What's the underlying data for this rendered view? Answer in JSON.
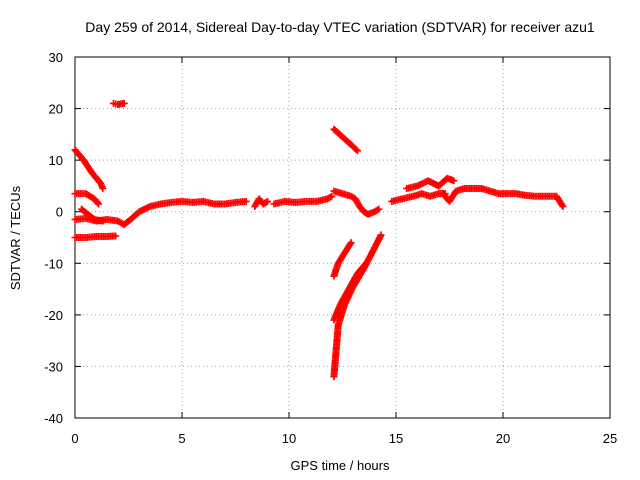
{
  "chart_data": {
    "type": "scatter",
    "title": "Day 259 of 2014, Sidereal Day-to-day VTEC variation (SDTVAR) for receiver azu1",
    "xlabel": "GPS time / hours",
    "ylabel": "SDTVAR / TECUs",
    "xlim": [
      0,
      25
    ],
    "ylim": [
      -40,
      30
    ],
    "xticks": [
      0,
      5,
      10,
      15,
      20,
      25
    ],
    "yticks": [
      -40,
      -30,
      -20,
      -10,
      0,
      10,
      20,
      30
    ],
    "xtick_labels": [
      "0",
      "5",
      "10",
      "15",
      "20",
      "25"
    ],
    "ytick_labels": [
      "-40",
      "-30",
      "-20",
      "-10",
      "0",
      "10",
      "20",
      "30"
    ],
    "grid": true,
    "marker": "+",
    "color": "#ff0000",
    "series": [
      {
        "name": "arc-main",
        "segments": [
          [
            [
              0.0,
              -1.5
            ],
            [
              0.5,
              -1.3
            ],
            [
              1.0,
              -1.8
            ],
            [
              1.5,
              -1.5
            ],
            [
              2.0,
              -1.8
            ],
            [
              2.3,
              -2.5
            ],
            [
              2.6,
              -1.5
            ],
            [
              3.0,
              0.0
            ],
            [
              3.5,
              1.0
            ],
            [
              4.0,
              1.5
            ],
            [
              4.5,
              1.8
            ],
            [
              5.0,
              2.0
            ],
            [
              5.5,
              1.8
            ],
            [
              6.0,
              2.0
            ],
            [
              6.5,
              1.5
            ],
            [
              7.0,
              1.5
            ],
            [
              7.5,
              1.8
            ],
            [
              8.0,
              2.0
            ]
          ],
          [
            [
              8.4,
              1.0
            ],
            [
              8.6,
              2.5
            ],
            [
              8.8,
              1.5
            ],
            [
              9.0,
              2.0
            ]
          ],
          [
            [
              9.3,
              1.5
            ],
            [
              9.8,
              2.0
            ],
            [
              10.3,
              1.8
            ],
            [
              10.8,
              2.0
            ],
            [
              11.3,
              2.0
            ],
            [
              11.8,
              2.5
            ],
            [
              12.0,
              3.0
            ]
          ]
        ]
      },
      {
        "name": "arc-neg5",
        "segments": [
          [
            [
              0.0,
              -5.0
            ],
            [
              0.5,
              -5.0
            ],
            [
              1.0,
              -4.8
            ],
            [
              1.5,
              -4.8
            ],
            [
              1.9,
              -4.7
            ]
          ]
        ]
      },
      {
        "name": "arc-descend",
        "segments": [
          [
            [
              0.0,
              12.0
            ],
            [
              0.4,
              10.0
            ],
            [
              0.8,
              7.5
            ],
            [
              1.2,
              5.5
            ],
            [
              1.3,
              4.5
            ]
          ]
        ]
      },
      {
        "name": "arc-3to0",
        "segments": [
          [
            [
              0.0,
              3.5
            ],
            [
              0.5,
              3.5
            ],
            [
              0.9,
              2.5
            ],
            [
              1.1,
              1.5
            ]
          ]
        ]
      },
      {
        "name": "arc-early-low",
        "segments": [
          [
            [
              0.3,
              0.5
            ],
            [
              0.6,
              -0.5
            ],
            [
              0.9,
              -1.5
            ],
            [
              1.3,
              -1.8
            ]
          ]
        ]
      },
      {
        "name": "arc-20",
        "segments": [
          [
            [
              1.8,
              21.0
            ],
            [
              2.0,
              20.8
            ],
            [
              2.3,
              21.0
            ]
          ]
        ]
      },
      {
        "name": "arc-16to12",
        "segments": [
          [
            [
              12.1,
              16.0
            ],
            [
              12.5,
              14.5
            ],
            [
              12.9,
              13.0
            ],
            [
              13.2,
              11.8
            ]
          ]
        ]
      },
      {
        "name": "arc-12-14",
        "segments": [
          [
            [
              12.1,
              4.0
            ],
            [
              12.5,
              3.5
            ],
            [
              12.9,
              3.0
            ],
            [
              13.1,
              2.5
            ],
            [
              13.3,
              1.0
            ],
            [
              13.5,
              0.0
            ],
            [
              13.7,
              -0.5
            ],
            [
              14.0,
              0.0
            ],
            [
              14.2,
              0.5
            ]
          ]
        ]
      },
      {
        "name": "arc-deep",
        "segments": [
          [
            [
              12.1,
              -32.0
            ],
            [
              12.2,
              -27.0
            ],
            [
              12.3,
              -22.0
            ],
            [
              12.6,
              -18.0
            ],
            [
              13.0,
              -14.5
            ],
            [
              13.5,
              -11.0
            ],
            [
              14.0,
              -7.0
            ],
            [
              14.3,
              -4.5
            ]
          ]
        ]
      },
      {
        "name": "arc-mid-neg",
        "segments": [
          [
            [
              12.1,
              -21.0
            ],
            [
              12.4,
              -18.0
            ],
            [
              12.8,
              -15.0
            ],
            [
              13.2,
              -12.0
            ],
            [
              13.6,
              -10.0
            ]
          ]
        ]
      },
      {
        "name": "arc-up-neg",
        "segments": [
          [
            [
              12.1,
              -12.5
            ],
            [
              12.3,
              -10.0
            ],
            [
              12.6,
              -8.0
            ],
            [
              12.9,
              -6.0
            ]
          ]
        ]
      },
      {
        "name": "arc-late",
        "segments": [
          [
            [
              14.8,
              2.0
            ],
            [
              15.3,
              2.5
            ],
            [
              15.8,
              3.0
            ],
            [
              16.2,
              3.5
            ],
            [
              16.6,
              3.0
            ],
            [
              17.0,
              3.5
            ],
            [
              17.3,
              3.5
            ]
          ],
          [
            [
              15.5,
              4.5
            ],
            [
              16.0,
              5.0
            ],
            [
              16.5,
              6.0
            ],
            [
              17.0,
              5.0
            ],
            [
              17.4,
              6.5
            ],
            [
              17.7,
              6.0
            ]
          ],
          [
            [
              17.2,
              3.5
            ],
            [
              17.5,
              2.0
            ],
            [
              17.8,
              4.0
            ],
            [
              18.2,
              4.5
            ],
            [
              18.6,
              4.5
            ],
            [
              19.0,
              4.5
            ],
            [
              19.4,
              4.0
            ],
            [
              19.8,
              3.5
            ],
            [
              20.2,
              3.5
            ],
            [
              20.6,
              3.5
            ],
            [
              21.0,
              3.2
            ],
            [
              21.5,
              3.0
            ],
            [
              22.0,
              3.0
            ],
            [
              22.5,
              3.0
            ],
            [
              22.8,
              1.0
            ]
          ]
        ]
      }
    ]
  }
}
